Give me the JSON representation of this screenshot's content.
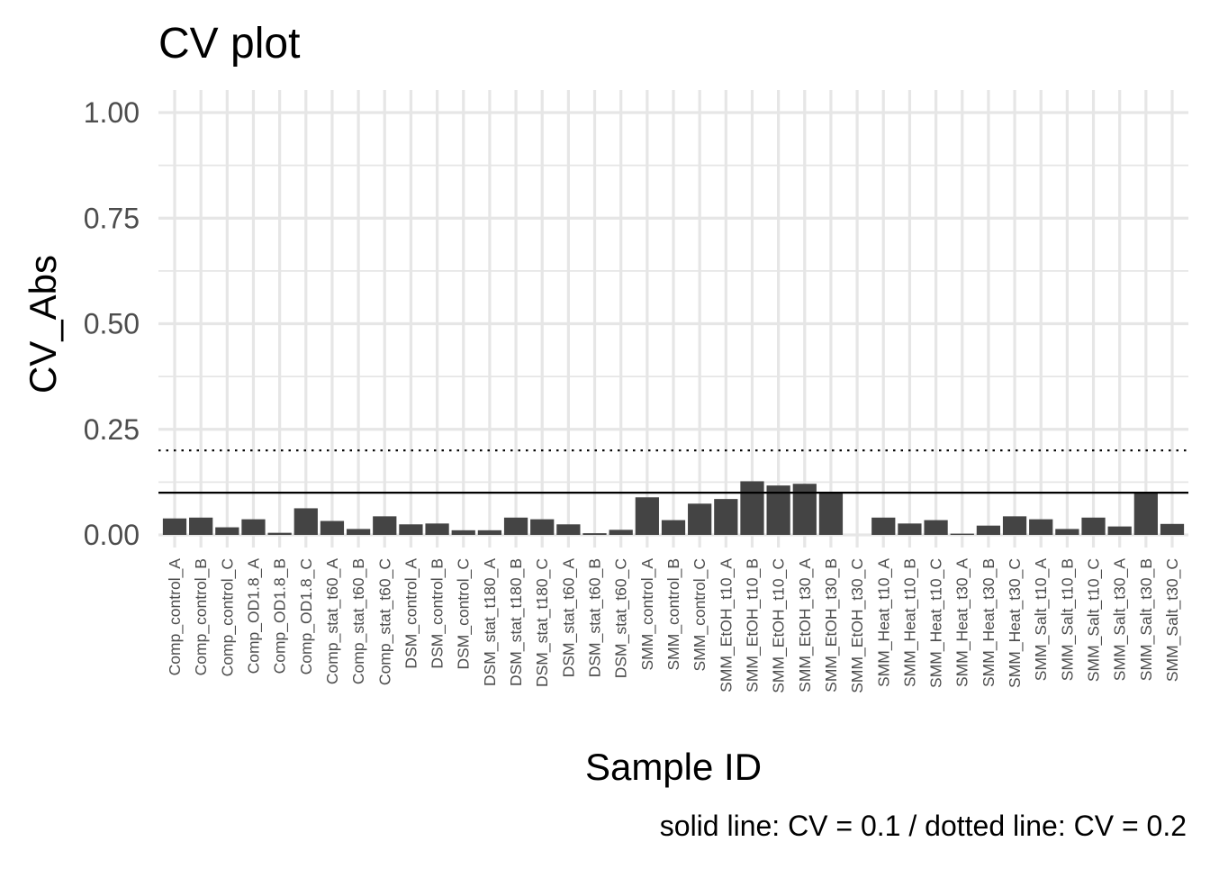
{
  "chart_data": {
    "type": "bar",
    "title": "CV plot",
    "xlabel": "Sample ID",
    "ylabel": "CV_Abs",
    "caption": "solid line: CV = 0.1 / dotted line: CV = 0.2",
    "ylim": [
      0,
      1.0
    ],
    "yticks": [
      "0.00",
      "0.25",
      "0.50",
      "0.75",
      "1.00"
    ],
    "grid": true,
    "reference_lines": [
      {
        "value": 0.1,
        "style": "solid"
      },
      {
        "value": 0.2,
        "style": "dotted"
      }
    ],
    "categories": [
      "Comp_control_A",
      "Comp_control_B",
      "Comp_control_C",
      "Comp_OD1.8_A",
      "Comp_OD1.8_B",
      "Comp_OD1.8_C",
      "Comp_stat_t60_A",
      "Comp_stat_t60_B",
      "Comp_stat_t60_C",
      "DSM_control_A",
      "DSM_control_B",
      "DSM_control_C",
      "DSM_stat_t180_A",
      "DSM_stat_t180_B",
      "DSM_stat_t180_C",
      "DSM_stat_t60_A",
      "DSM_stat_t60_B",
      "DSM_stat_t60_C",
      "SMM_control_A",
      "SMM_control_B",
      "SMM_control_C",
      "SMM_EtOH_t10_A",
      "SMM_EtOH_t10_B",
      "SMM_EtOH_t10_C",
      "SMM_EtOH_t30_A",
      "SMM_EtOH_t30_B",
      "SMM_EtOH_t30_C",
      "SMM_Heat_t10_A",
      "SMM_Heat_t10_B",
      "SMM_Heat_t10_C",
      "SMM_Heat_t30_A",
      "SMM_Heat_t30_B",
      "SMM_Heat_t30_C",
      "SMM_Salt_t10_A",
      "SMM_Salt_t10_B",
      "SMM_Salt_t10_C",
      "SMM_Salt_t30_A",
      "SMM_Salt_t30_B",
      "SMM_Salt_t30_C"
    ],
    "values": [
      0.039,
      0.041,
      0.018,
      0.037,
      0.005,
      0.063,
      0.033,
      0.014,
      0.044,
      0.025,
      0.027,
      0.011,
      0.011,
      0.041,
      0.037,
      0.025,
      0.004,
      0.012,
      0.089,
      0.035,
      0.074,
      0.085,
      0.127,
      0.117,
      0.121,
      0.101,
      0.0,
      0.041,
      0.027,
      0.035,
      0.003,
      0.022,
      0.044,
      0.037,
      0.014,
      0.041,
      0.02,
      0.101,
      0.026
    ],
    "bar_color": "#444444",
    "grid_color": "#e6e6e6"
  }
}
